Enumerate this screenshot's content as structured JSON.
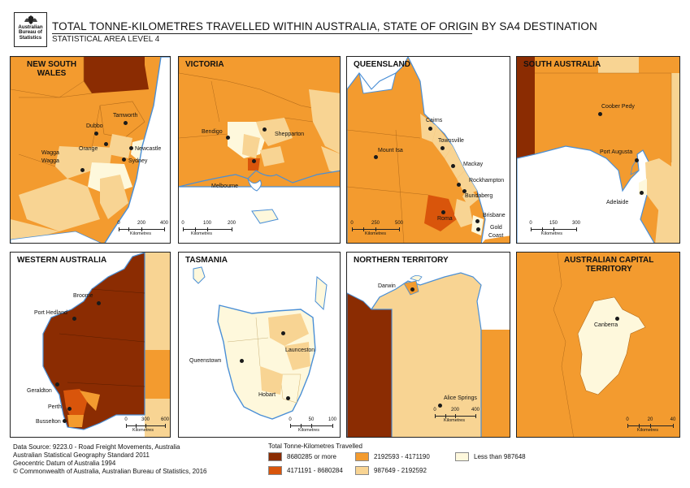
{
  "logo": {
    "line1": "Australian",
    "line2": "Bureau of",
    "line3": "Statistics"
  },
  "title": "TOTAL TONNE-KILOMETRES TRAVELLED WITHIN AUSTRALIA, STATE OF ORIGIN BY SA4 DESTINATION",
  "subtitle": "STATISTICAL AREA LEVEL 4",
  "colors": {
    "class1": "#8b2c02",
    "class2": "#d9550b",
    "class3": "#f39b2f",
    "class4": "#f8d493",
    "class5": "#fef8dc",
    "water": "#ffffff",
    "coast": "#4a8fd6"
  },
  "panels": [
    {
      "title_lines": [
        "NEW SOUTH",
        "WALES"
      ],
      "places": [
        "Tamworth",
        "Dubbo",
        "Orange",
        "Newcastle",
        "Wagga",
        "Wagga",
        "Sydney"
      ],
      "scalebar": {
        "ticks": [
          "0",
          "200",
          "400"
        ],
        "unit": "Kilometres"
      }
    },
    {
      "title_lines": [
        "VICTORIA"
      ],
      "places": [
        "Bendigo",
        "Shepparton",
        "Melbourne"
      ],
      "scalebar": {
        "ticks": [
          "0",
          "100",
          "200"
        ],
        "unit": "Kilometres"
      }
    },
    {
      "title_lines": [
        "QUEENSLAND"
      ],
      "places": [
        "Cairns",
        "Townsville",
        "Mount Isa",
        "Mackay",
        "Rockhampton",
        "Bundaberg",
        "Roma",
        "Brisbane",
        "Gold",
        "Coast"
      ],
      "scalebar": {
        "ticks": [
          "0",
          "250",
          "500"
        ],
        "unit": "Kilometres"
      }
    },
    {
      "title_lines": [
        "SOUTH AUSTRALIA"
      ],
      "places": [
        "Coober Pedy",
        "Port Augusta",
        "Adelaide"
      ],
      "scalebar": {
        "ticks": [
          "0",
          "150",
          "300"
        ],
        "unit": "Kilometres"
      }
    },
    {
      "title_lines": [
        "WESTERN AUSTRALIA"
      ],
      "places": [
        "Broome",
        "Port Hedland",
        "Geraldton",
        "Perth",
        "Busselton"
      ],
      "scalebar": {
        "ticks": [
          "0",
          "300",
          "600"
        ],
        "unit": "Kilometres"
      }
    },
    {
      "title_lines": [
        "TASMANIA"
      ],
      "places": [
        "Launceston",
        "Queenstown",
        "Hobart"
      ],
      "scalebar": {
        "ticks": [
          "0",
          "50",
          "100"
        ],
        "unit": "Kilometres"
      }
    },
    {
      "title_lines": [
        "NORTHERN TERRITORY"
      ],
      "places": [
        "Darwin",
        "Alice Springs"
      ],
      "scalebar": {
        "ticks": [
          "0",
          "200",
          "400"
        ],
        "unit": "Kilometres"
      }
    },
    {
      "title_lines": [
        "AUSTRALIAN CAPITAL",
        "TERRITORY"
      ],
      "places": [
        "Canberra"
      ],
      "scalebar": {
        "ticks": [
          "0",
          "20",
          "40"
        ],
        "unit": "Kilometres"
      }
    }
  ],
  "footer": {
    "lines": [
      "Data Source: 9223.0 - Road Freight Movements, Australia",
      "Australian Statistical Geography Standard 2011",
      "Geocentric Datum of Australia 1994",
      "© Commonwealth of Australia, Australian Bureau of Statistics, 2016"
    ]
  },
  "legend": {
    "title": "Total Tonne-Kilometres Travelled",
    "items": [
      {
        "label": "8680285 or more",
        "color": "#8b2c02"
      },
      {
        "label": "4171191 - 8680284",
        "color": "#d9550b"
      },
      {
        "label": "2192593 - 4171190",
        "color": "#f39b2f"
      },
      {
        "label": "987649 - 2192592",
        "color": "#f8d493"
      },
      {
        "label": "Less than 987648",
        "color": "#fef8dc"
      }
    ]
  }
}
